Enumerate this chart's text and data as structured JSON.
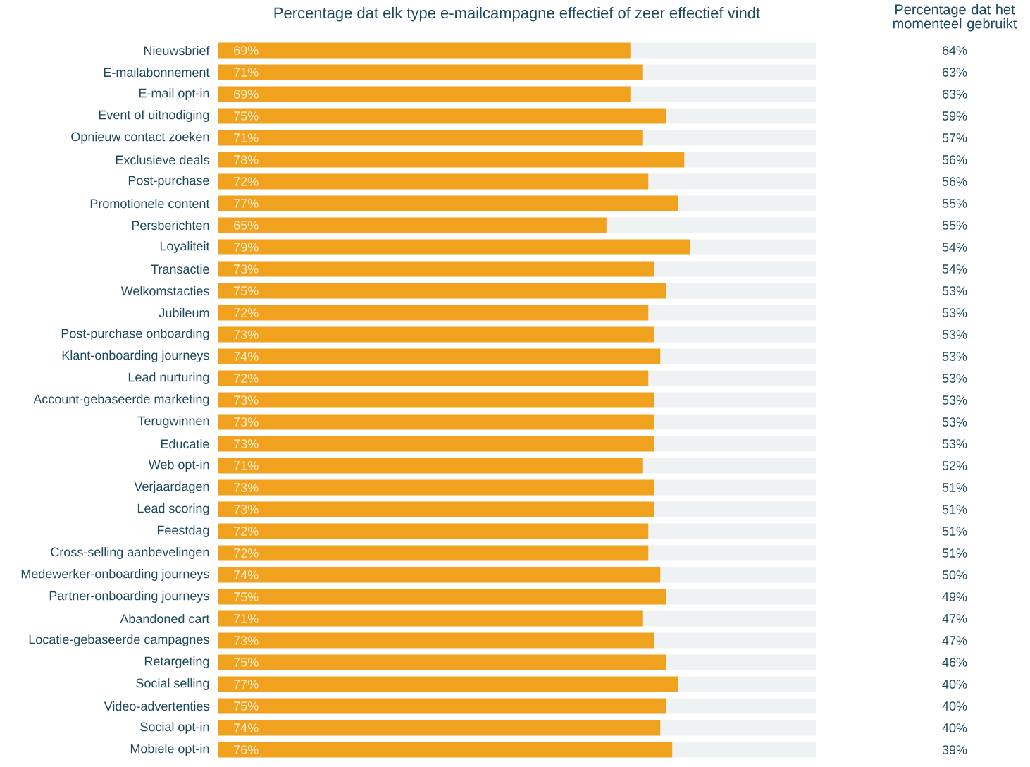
{
  "chart_data": [
    {
      "type": "bar",
      "orientation": "horizontal",
      "title": "Percentage dat elk type e-mailcampagne effectief of zeer effectief vindt",
      "categories": [
        "Nieuwsbrief",
        "E-mailabonnement",
        "E-mail opt-in",
        "Event of uitnodiging",
        "Opnieuw contact zoeken",
        "Exclusieve deals",
        "Post-purchase",
        "Promotionele content",
        "Persberichten",
        "Loyaliteit",
        "Transactie",
        "Welkomstacties",
        "Jubileum",
        "Post-purchase onboarding",
        "Klant-onboarding journeys",
        "Lead nurturing",
        "Account-gebaseerde marketing",
        "Terugwinnen",
        "Educatie",
        "Web opt-in",
        "Verjaardagen",
        "Lead scoring",
        "Feestdag",
        "Cross-selling aanbevelingen",
        "Medewerker-onboarding journeys",
        "Partner-onboarding journeys",
        "Abandoned cart",
        "Locatie-gebaseerde campagnes",
        "Retargeting",
        "Social selling",
        "Video-advertenties",
        "Social opt-in",
        "Mobiele opt-in"
      ],
      "xlim": [
        0,
        100
      ],
      "tick_labels": "y",
      "series": [
        {
          "color": "#f0a21f",
          "values": [
            69,
            71,
            69,
            75,
            71,
            78,
            72,
            77,
            65,
            79,
            73,
            75,
            72,
            73,
            74,
            72,
            73,
            73,
            73,
            71,
            73,
            73,
            72,
            72,
            74,
            75,
            71,
            73,
            75,
            77,
            75,
            74,
            76
          ],
          "value_labels": [
            "69%",
            "71%",
            "69%",
            "75%",
            "71%",
            "78%",
            "72%",
            "77%",
            "65%",
            "79%",
            "73%",
            "75%",
            "72%",
            "73%",
            "74%",
            "72%",
            "73%",
            "73%",
            "73%",
            "71%",
            "73%",
            "73%",
            "72%",
            "72%",
            "74%",
            "75%",
            "71%",
            "73%",
            "75%",
            "77%",
            "75%",
            "74%",
            "76%"
          ]
        },
        {
          "color": "#eff2f3",
          "values": [
            31,
            29,
            31,
            25,
            29,
            22,
            28,
            23,
            35,
            21,
            27,
            25,
            28,
            27,
            26,
            28,
            27,
            27,
            27,
            29,
            27,
            27,
            28,
            28,
            26,
            25,
            29,
            27,
            25,
            23,
            25,
            26,
            24
          ]
        }
      ],
      "stacked": true
    },
    {
      "type": "other",
      "title": "Percentage dat het momenteel gebruikt",
      "annotations": [
        "64%",
        "63%",
        "63%",
        "59%",
        "57%",
        "56%",
        "56%",
        "55%",
        "55%",
        "54%",
        "54%",
        "53%",
        "53%",
        "53%",
        "53%",
        "53%",
        "53%",
        "53%",
        "53%",
        "52%",
        "51%",
        "51%",
        "51%",
        "51%",
        "50%",
        "49%",
        "47%",
        "47%",
        "46%",
        "40%",
        "40%",
        "40%",
        "39%"
      ]
    }
  ]
}
